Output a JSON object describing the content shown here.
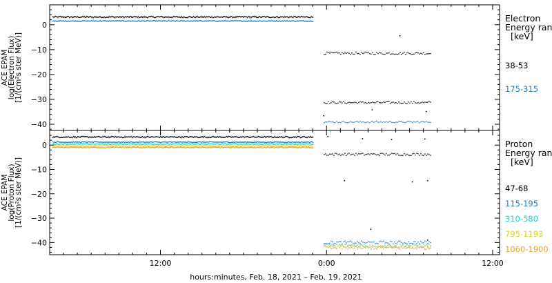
{
  "chart_data": {
    "type": "scatter",
    "xlabel": "hours:minutes, Feb. 18, 2021 – Feb. 19, 2021",
    "xlim": [
      4,
      36.5
    ],
    "x_ticks": [
      {
        "value": 12,
        "label": "12:00"
      },
      {
        "value": 24,
        "label": "0:00"
      },
      {
        "value": 36,
        "label": "12:00"
      }
    ],
    "panels": [
      {
        "id": "electron",
        "ylabel_lines": [
          "ACE EPAM",
          "log(Electron Flux)",
          "[1/(cm²s ster MeV)]"
        ],
        "ylim": [
          -42.5,
          8
        ],
        "y_ticks": [
          0,
          -10,
          -20,
          -30,
          -40
        ],
        "legend_title": [
          "Electron",
          "Energy range",
          "[keV]"
        ],
        "series": [
          {
            "name": "38-53",
            "color": "#000000",
            "segments": [
              {
                "x0": 4.2,
                "x1": 23.0,
                "y": 3.1,
                "jitter": 0.3
              },
              {
                "x0": 23.8,
                "x1": 31.5,
                "y": -11.5,
                "jitter": 0.5
              },
              {
                "x0": 23.8,
                "x1": 31.5,
                "y": -31.3,
                "jitter": 0.4
              }
            ],
            "points": [
              [
                29.3,
                -4.4
              ],
              [
                23.8,
                -36.6
              ],
              [
                31.2,
                -34.9
              ],
              [
                27.3,
                -34.2
              ]
            ]
          },
          {
            "name": "175-315",
            "color": "#1e78c8",
            "segments": [
              {
                "x0": 4.2,
                "x1": 23.0,
                "y": 1.5,
                "jitter": 0.2
              },
              {
                "x0": 23.8,
                "x1": 31.5,
                "y": -39.1,
                "jitter": 0.3
              }
            ],
            "points": []
          }
        ]
      },
      {
        "id": "proton",
        "ylabel_lines": [
          "ACE EPAM",
          "log(Proton Flux)",
          "[1/(cm²s ster MeV)]"
        ],
        "ylim": [
          -45,
          6
        ],
        "y_ticks": [
          0,
          -10,
          -20,
          -30,
          -40
        ],
        "legend_title": [
          "Proton",
          "Energy range",
          "[keV]"
        ],
        "series": [
          {
            "name": "47-68",
            "color": "#000000",
            "segments": [
              {
                "x0": 4.2,
                "x1": 23.0,
                "y": 3.3,
                "jitter": 0.3
              },
              {
                "x0": 23.8,
                "x1": 31.5,
                "y": -3.8,
                "jitter": 0.5
              }
            ],
            "points": [
              [
                24.1,
                3.5
              ],
              [
                26.6,
                2.6
              ],
              [
                28.7,
                2.3
              ],
              [
                31.1,
                2.5
              ],
              [
                25.3,
                -14.6
              ],
              [
                30.2,
                -15.1
              ],
              [
                31.3,
                -14.6
              ],
              [
                27.2,
                -34.6
              ],
              [
                31.3,
                -39.0
              ]
            ]
          },
          {
            "name": "115-195",
            "color": "#1e78c8",
            "segments": [
              {
                "x0": 4.2,
                "x1": 23.0,
                "y": 1.2,
                "jitter": 0.2
              },
              {
                "x0": 23.8,
                "x1": 31.5,
                "y": -40.0,
                "jitter": 0.6
              }
            ],
            "points": []
          },
          {
            "name": "310-580",
            "color": "#22d0d0",
            "segments": [
              {
                "x0": 4.2,
                "x1": 23.0,
                "y": 0.4,
                "jitter": 0.2
              },
              {
                "x0": 23.8,
                "x1": 31.5,
                "y": -41.2,
                "jitter": 0.7
              }
            ],
            "points": [
              [
                24.3,
                5.5
              ]
            ]
          },
          {
            "name": "795-1193",
            "color": "#d8d800",
            "segments": [
              {
                "x0": 4.2,
                "x1": 23.0,
                "y": -0.4,
                "jitter": 0.2
              },
              {
                "x0": 23.8,
                "x1": 31.5,
                "y": -41.8,
                "jitter": 0.7
              }
            ],
            "points": []
          },
          {
            "name": "1060-1900",
            "color": "#f0a020",
            "segments": [
              {
                "x0": 4.2,
                "x1": 23.0,
                "y": -1.0,
                "jitter": 0.2
              },
              {
                "x0": 23.8,
                "x1": 31.5,
                "y": -42.2,
                "jitter": 0.7
              }
            ],
            "points": []
          }
        ]
      }
    ]
  }
}
